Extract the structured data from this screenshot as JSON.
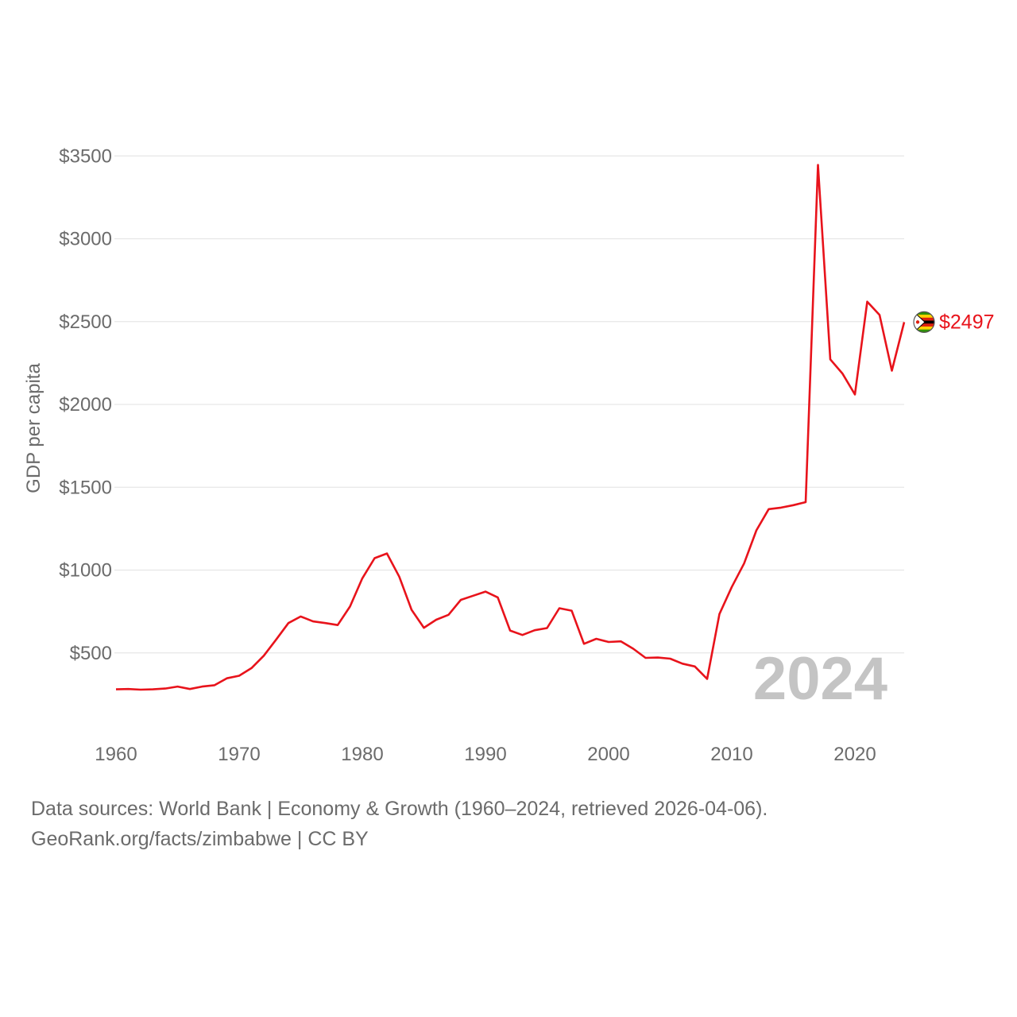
{
  "chart_data": {
    "type": "line",
    "ylabel": "GDP per capita",
    "ylim": [
      0,
      3600
    ],
    "yticks": [
      500,
      1000,
      1500,
      2000,
      2500,
      3000,
      3500
    ],
    "ytick_labels": [
      "$500",
      "$1000",
      "$1500",
      "$2000",
      "$2500",
      "$3000",
      "$3500"
    ],
    "xlim": [
      1960,
      2024
    ],
    "xticks": [
      1960,
      1970,
      1980,
      1990,
      2000,
      2010,
      2020
    ],
    "xtick_labels": [
      "1960",
      "1970",
      "1980",
      "1990",
      "2000",
      "2010",
      "2020"
    ],
    "grid": true,
    "highlight_year": "2024",
    "series": [
      {
        "country": "zimbabwe",
        "color": "#e8131b",
        "end_label": "$2497",
        "x": [
          1960,
          1961,
          1962,
          1963,
          1964,
          1965,
          1966,
          1967,
          1968,
          1969,
          1970,
          1971,
          1972,
          1973,
          1974,
          1975,
          1976,
          1977,
          1978,
          1979,
          1980,
          1981,
          1982,
          1983,
          1984,
          1985,
          1986,
          1987,
          1988,
          1989,
          1990,
          1991,
          1992,
          1993,
          1994,
          1995,
          1996,
          1997,
          1998,
          1999,
          2000,
          2001,
          2002,
          2003,
          2004,
          2005,
          2006,
          2007,
          2008,
          2009,
          2010,
          2011,
          2012,
          2013,
          2014,
          2015,
          2016,
          2017,
          2018,
          2019,
          2020,
          2021,
          2022,
          2023,
          2024
        ],
        "y": [
          280,
          282,
          278,
          280,
          285,
          297,
          282,
          297,
          305,
          347,
          362,
          408,
          483,
          580,
          680,
          720,
          690,
          680,
          668,
          780,
          950,
          1072,
          1100,
          960,
          760,
          652,
          700,
          730,
          820,
          845,
          870,
          835,
          635,
          608,
          637,
          650,
          770,
          755,
          555,
          585,
          566,
          570,
          525,
          470,
          472,
          465,
          435,
          418,
          343,
          735,
          898,
          1040,
          1240,
          1368,
          1377,
          1392,
          1410,
          3446,
          2272,
          2185,
          2060,
          2620,
          2540,
          2204,
          2497
        ]
      }
    ],
    "flag_icon": "zimbabwe-flag-icon"
  },
  "source": {
    "line1": "Data sources: World Bank | Economy & Growth (1960–2024, retrieved 2026-04-06).",
    "line2": "GeoRank.org/facts/zimbabwe | CC BY"
  }
}
